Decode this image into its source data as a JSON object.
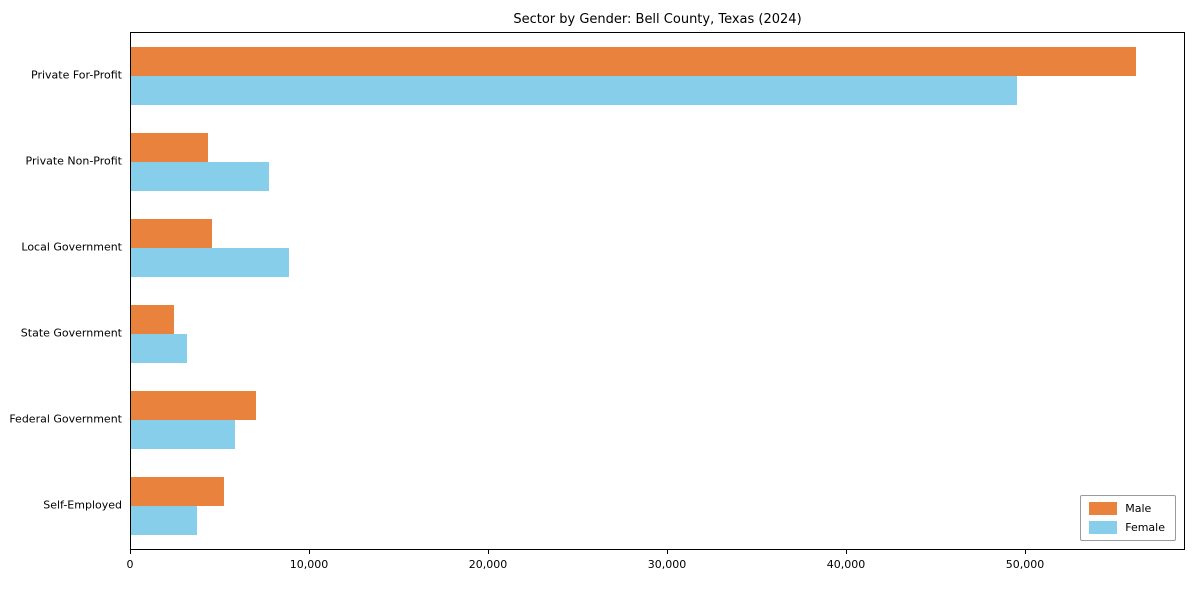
{
  "chart_data": {
    "type": "bar",
    "orientation": "horizontal",
    "title": "Sector by Gender: Bell County, Texas (2024)",
    "categories": [
      "Private For-Profit",
      "Private Non-Profit",
      "Local Government",
      "State Government",
      "Federal Government",
      "Self-Employed"
    ],
    "series": [
      {
        "name": "Male",
        "color": "#e8823d",
        "values": [
          56100,
          4300,
          4500,
          2400,
          7000,
          5200
        ]
      },
      {
        "name": "Female",
        "color": "#87ceeb",
        "values": [
          49500,
          7700,
          8800,
          3100,
          5800,
          3700
        ]
      }
    ],
    "x_ticks": [
      0,
      10000,
      20000,
      30000,
      40000,
      50000
    ],
    "x_tick_labels": [
      "0",
      "10,000",
      "20,000",
      "30,000",
      "40,000",
      "50,000"
    ],
    "xlim": [
      0,
      58800
    ],
    "xlabel": "",
    "ylabel": "",
    "grid": false,
    "legend_position": "lower right"
  }
}
